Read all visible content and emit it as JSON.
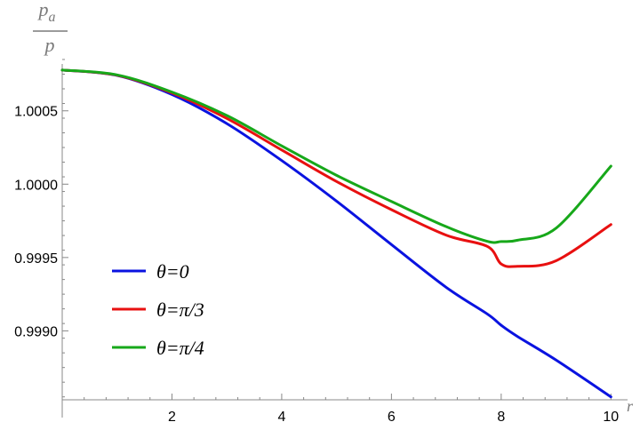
{
  "chart_data": {
    "type": "line",
    "xlabel": "r",
    "ylabel": {
      "numerator": "p",
      "numerator_sub": "a",
      "denominator": "p"
    },
    "xlim": [
      0,
      10.4
    ],
    "ylim": [
      0.99853,
      1.00088
    ],
    "x_ticks": [
      2,
      4,
      6,
      8,
      10
    ],
    "x_tick_labels": [
      "2",
      "4",
      "6",
      "8",
      "10"
    ],
    "y_ticks": [
      0.999,
      0.9995,
      1.0,
      1.0005
    ],
    "y_tick_labels": [
      "0.9990",
      "0.9995",
      "1.0000",
      "1.0005"
    ],
    "grid": false,
    "legend_position": "lower-left",
    "x": [
      0,
      1,
      2,
      3,
      4,
      5,
      6,
      7,
      7.75,
      8,
      8.3,
      9,
      10
    ],
    "series": [
      {
        "name": "θ=0",
        "color": "#0a13e0",
        "values": [
          1.000778,
          1.000741,
          1.000611,
          1.000413,
          1.000161,
          0.999884,
          0.999588,
          0.999296,
          0.999114,
          0.999038,
          0.998961,
          0.998801,
          0.99855
        ]
      },
      {
        "name": "θ=π/3",
        "color": "#e81010",
        "values": [
          1.000778,
          1.000743,
          1.000622,
          1.000448,
          1.000233,
          1.000018,
          0.999826,
          0.999652,
          0.999575,
          0.999456,
          0.99944,
          0.999478,
          0.999725
        ]
      },
      {
        "name": "θ=π/4",
        "color": "#17a81a",
        "values": [
          1.000778,
          1.000745,
          1.000628,
          1.000468,
          1.000261,
          1.00006,
          0.999882,
          0.99971,
          0.99961,
          0.999609,
          0.999618,
          0.9997,
          1.000123
        ]
      }
    ]
  }
}
